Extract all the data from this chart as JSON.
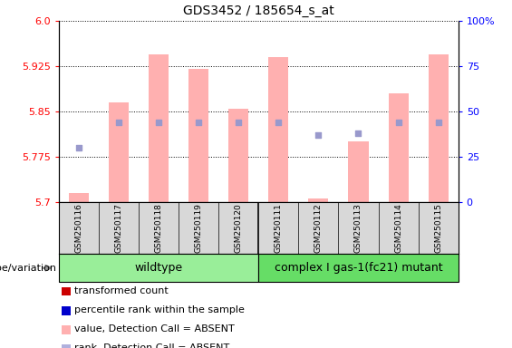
{
  "title": "GDS3452 / 185654_s_at",
  "samples": [
    "GSM250116",
    "GSM250117",
    "GSM250118",
    "GSM250119",
    "GSM250120",
    "GSM250111",
    "GSM250112",
    "GSM250113",
    "GSM250114",
    "GSM250115"
  ],
  "transformed_counts": [
    5.715,
    5.865,
    5.945,
    5.92,
    5.855,
    5.94,
    5.705,
    5.8,
    5.88,
    5.945
  ],
  "percentile_ranks": [
    30,
    44,
    44,
    44,
    44,
    44,
    37,
    38,
    44,
    44
  ],
  "ylim_left": [
    5.7,
    6.0
  ],
  "ylim_right": [
    0,
    100
  ],
  "yticks_left": [
    5.7,
    5.775,
    5.85,
    5.925,
    6.0
  ],
  "yticks_right": [
    0,
    25,
    50,
    75,
    100
  ],
  "bar_color": "#ffb0b0",
  "dot_color": "#9999cc",
  "wildtype_color": "#99ee99",
  "mutant_color": "#66dd66",
  "genotype_label": "genotype/variation",
  "wildtype_label": "wildtype",
  "mutant_label": "complex I gas-1(fc21) mutant",
  "legend_items": [
    {
      "color": "#cc0000",
      "label": "transformed count"
    },
    {
      "color": "#0000cc",
      "label": "percentile rank within the sample"
    },
    {
      "color": "#ffb0b0",
      "label": "value, Detection Call = ABSENT"
    },
    {
      "color": "#b0b0dd",
      "label": "rank, Detection Call = ABSENT"
    }
  ],
  "base_value": 5.7,
  "background_color": "#d8d8d8",
  "figsize": [
    5.65,
    3.84
  ],
  "dpi": 100
}
